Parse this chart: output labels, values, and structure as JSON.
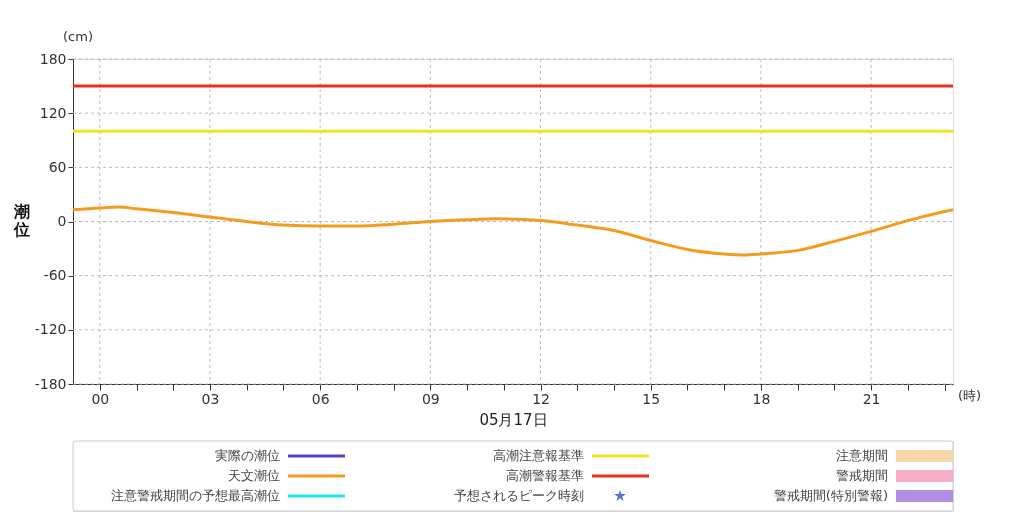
{
  "chart_data": {
    "type": "line",
    "xlabel": "05月17日",
    "ylabel": "潮位",
    "annotations": [
      "(cm)",
      "(時)"
    ],
    "xlim": [
      -0.73,
      23.23
    ],
    "ylim": [
      -180,
      180
    ],
    "xticks": [
      {
        "value": 0,
        "label": "00"
      },
      {
        "value": 1,
        "label": null
      },
      {
        "value": 2,
        "label": null
      },
      {
        "value": 3,
        "label": "03"
      },
      {
        "value": 4,
        "label": null
      },
      {
        "value": 5,
        "label": null
      },
      {
        "value": 6,
        "label": "06"
      },
      {
        "value": 7,
        "label": null
      },
      {
        "value": 8,
        "label": null
      },
      {
        "value": 9,
        "label": "09"
      },
      {
        "value": 10,
        "label": null
      },
      {
        "value": 11,
        "label": null
      },
      {
        "value": 12,
        "label": "12"
      },
      {
        "value": 13,
        "label": null
      },
      {
        "value": 14,
        "label": null
      },
      {
        "value": 15,
        "label": "15"
      },
      {
        "value": 16,
        "label": null
      },
      {
        "value": 17,
        "label": null
      },
      {
        "value": 18,
        "label": "18"
      },
      {
        "value": 19,
        "label": null
      },
      {
        "value": 20,
        "label": null
      },
      {
        "value": 21,
        "label": "21"
      },
      {
        "value": 22,
        "label": null
      },
      {
        "value": 23,
        "label": null
      }
    ],
    "yticks": [
      -180,
      -120,
      -60,
      0,
      60,
      120,
      180
    ],
    "grid": true,
    "legend": "bottom",
    "series": [
      {
        "name": "実際の潮位",
        "type": "line",
        "color": "#5b3fc8"
      },
      {
        "name": "天文潮位",
        "type": "line",
        "color": "#f39c1f",
        "x": [
          -0.73,
          0,
          0.5,
          1,
          2,
          3,
          4,
          5,
          6,
          7,
          8,
          9,
          10,
          10.8,
          12,
          13,
          14,
          15,
          16,
          17,
          17.5,
          18,
          19,
          20,
          21,
          22,
          23,
          23.23
        ],
        "values": [
          13,
          15,
          16,
          14,
          10,
          5,
          0,
          -4,
          -5,
          -5,
          -3,
          0,
          2,
          3,
          1,
          -4,
          -10,
          -21,
          -31,
          -36,
          -37,
          -36,
          -32,
          -22,
          -11,
          1,
          11,
          13
        ]
      },
      {
        "name": "注意警戒期間の予想最高潮位",
        "type": "line",
        "color": "#22e5f0"
      },
      {
        "name": "予想されるピーク時刻",
        "type": "scatter",
        "marker": "star",
        "color": "#1a2ed8"
      },
      {
        "name": "注意期間",
        "type": "area",
        "color": "#f9d6a8"
      },
      {
        "name": "警戒期間",
        "type": "area",
        "color": "#f9afc8"
      },
      {
        "name": "警戒期間(特別警報)",
        "type": "area",
        "color": "#b08fe0"
      }
    ],
    "ref_lines": [
      {
        "axis": "y",
        "value": 100,
        "label": "高潮注意報基準",
        "color": "#f0e522"
      },
      {
        "axis": "y",
        "value": 150,
        "label": "高潮警報基準",
        "color": "#e8321e"
      }
    ]
  }
}
